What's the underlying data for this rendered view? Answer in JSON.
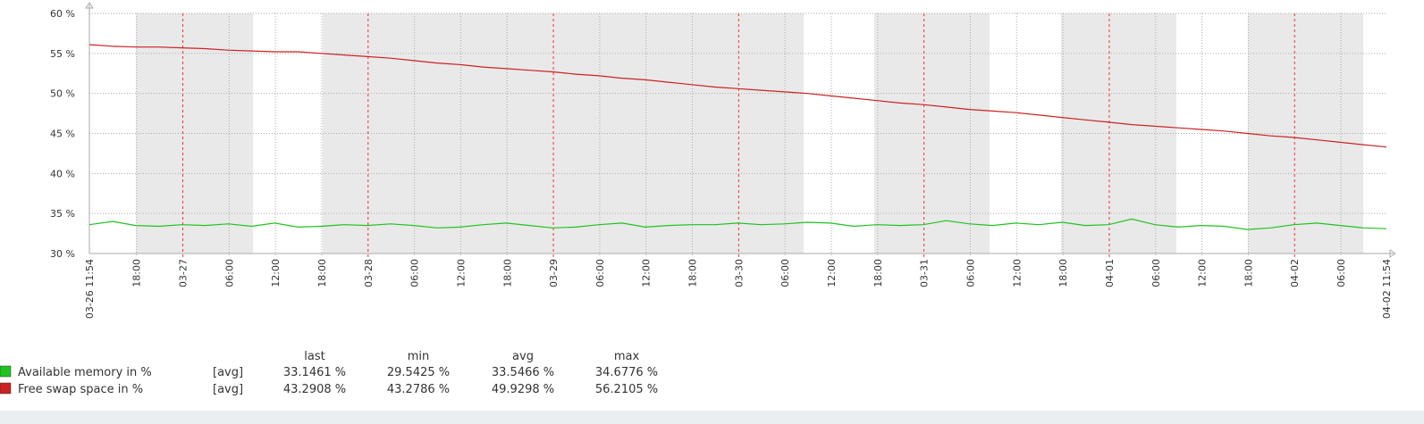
{
  "chart_data": {
    "type": "line",
    "xlim": [
      "03-26 11:54",
      "04-02 11:54"
    ],
    "ylim": [
      30,
      60
    ],
    "yticks": [
      {
        "value": 30,
        "label": "30 %"
      },
      {
        "value": 35,
        "label": "35 %"
      },
      {
        "value": 40,
        "label": "40 %"
      },
      {
        "value": 45,
        "label": "45 %"
      },
      {
        "value": 50,
        "label": "50 %"
      },
      {
        "value": 55,
        "label": "55 %"
      },
      {
        "value": 60,
        "label": "60 %"
      }
    ],
    "xticks": [
      {
        "value": "03-26 18:00",
        "label": "18:00"
      },
      {
        "value": "03-27 00:00",
        "label": "03-27"
      },
      {
        "value": "03-27 06:00",
        "label": "06:00"
      },
      {
        "value": "03-27 12:00",
        "label": "12:00"
      },
      {
        "value": "03-27 18:00",
        "label": "18:00"
      },
      {
        "value": "03-28 00:00",
        "label": "03-28"
      },
      {
        "value": "03-28 06:00",
        "label": "06:00"
      },
      {
        "value": "03-28 12:00",
        "label": "12:00"
      },
      {
        "value": "03-28 18:00",
        "label": "18:00"
      },
      {
        "value": "03-29 00:00",
        "label": "03-29"
      },
      {
        "value": "03-29 06:00",
        "label": "06:00"
      },
      {
        "value": "03-29 12:00",
        "label": "12:00"
      },
      {
        "value": "03-29 18:00",
        "label": "18:00"
      },
      {
        "value": "03-30 00:00",
        "label": "03-30"
      },
      {
        "value": "03-30 06:00",
        "label": "06:00"
      },
      {
        "value": "03-30 12:00",
        "label": "12:00"
      },
      {
        "value": "03-30 18:00",
        "label": "18:00"
      },
      {
        "value": "03-31 00:00",
        "label": "03-31"
      },
      {
        "value": "03-31 06:00",
        "label": "06:00"
      },
      {
        "value": "03-31 12:00",
        "label": "12:00"
      },
      {
        "value": "03-31 18:00",
        "label": "18:00"
      },
      {
        "value": "04-01 00:00",
        "label": "04-01"
      },
      {
        "value": "04-01 06:00",
        "label": "06:00"
      },
      {
        "value": "04-01 12:00",
        "label": "12:00"
      },
      {
        "value": "04-01 18:00",
        "label": "18:00"
      },
      {
        "value": "04-02 00:00",
        "label": "04-02"
      },
      {
        "value": "04-02 06:00",
        "label": "06:00"
      }
    ],
    "x": [
      "03-26 11:54",
      "03-26 14:54",
      "03-26 17:54",
      "03-26 20:54",
      "03-26 23:54",
      "03-27 02:54",
      "03-27 05:54",
      "03-27 08:54",
      "03-27 11:54",
      "03-27 14:54",
      "03-27 17:54",
      "03-27 20:54",
      "03-27 23:54",
      "03-28 02:54",
      "03-28 05:54",
      "03-28 08:54",
      "03-28 11:54",
      "03-28 14:54",
      "03-28 17:54",
      "03-28 20:54",
      "03-28 23:54",
      "03-29 02:54",
      "03-29 05:54",
      "03-29 08:54",
      "03-29 11:54",
      "03-29 14:54",
      "03-29 17:54",
      "03-29 20:54",
      "03-29 23:54",
      "03-30 02:54",
      "03-30 05:54",
      "03-30 08:54",
      "03-30 11:54",
      "03-30 14:54",
      "03-30 17:54",
      "03-30 20:54",
      "03-30 23:54",
      "03-31 02:54",
      "03-31 05:54",
      "03-31 08:54",
      "03-31 11:54",
      "03-31 14:54",
      "03-31 17:54",
      "03-31 20:54",
      "03-31 23:54",
      "04-01 02:54",
      "04-01 05:54",
      "04-01 08:54",
      "04-01 11:54",
      "04-01 14:54",
      "04-01 17:54",
      "04-01 20:54",
      "04-01 23:54",
      "04-02 02:54",
      "04-02 05:54",
      "04-02 08:54",
      "04-02 11:54"
    ],
    "legend_columns": [
      "last",
      "min",
      "avg",
      "max"
    ],
    "series": [
      {
        "name": "Available memory in %",
        "color": "#1ec41e",
        "function": "[avg]",
        "stats": [
          "33.1461 %",
          "29.5425 %",
          "33.5466 %",
          "34.6776 %"
        ],
        "values": [
          33.6,
          34.0,
          33.5,
          33.4,
          33.6,
          33.5,
          33.7,
          33.4,
          33.8,
          33.3,
          33.4,
          33.6,
          33.5,
          33.7,
          33.5,
          33.2,
          33.3,
          33.6,
          33.8,
          33.5,
          33.2,
          33.3,
          33.6,
          33.8,
          33.3,
          33.5,
          33.6,
          33.6,
          33.8,
          33.6,
          33.7,
          33.9,
          33.8,
          33.4,
          33.6,
          33.5,
          33.6,
          34.1,
          33.7,
          33.5,
          33.8,
          33.6,
          33.9,
          33.5,
          33.6,
          34.3,
          33.6,
          33.3,
          33.5,
          33.4,
          33.0,
          33.2,
          33.6,
          33.8,
          33.5,
          33.2,
          33.1
        ]
      },
      {
        "name": "Free swap space in %",
        "color": "#cc2222",
        "function": "[avg]",
        "stats": [
          "43.2908 %",
          "43.2786 %",
          "49.9298 %",
          "56.2105 %"
        ],
        "values": [
          56.1,
          55.9,
          55.8,
          55.8,
          55.7,
          55.6,
          55.4,
          55.3,
          55.2,
          55.2,
          55.0,
          54.8,
          54.6,
          54.4,
          54.1,
          53.8,
          53.6,
          53.3,
          53.1,
          52.9,
          52.7,
          52.4,
          52.2,
          51.9,
          51.7,
          51.4,
          51.1,
          50.8,
          50.6,
          50.4,
          50.2,
          50.0,
          49.7,
          49.4,
          49.1,
          48.8,
          48.6,
          48.3,
          48.0,
          47.8,
          47.6,
          47.3,
          47.0,
          46.7,
          46.4,
          46.1,
          45.9,
          45.7,
          45.5,
          45.3,
          45.0,
          44.7,
          44.5,
          44.2,
          43.9,
          43.6,
          43.3
        ]
      }
    ]
  }
}
